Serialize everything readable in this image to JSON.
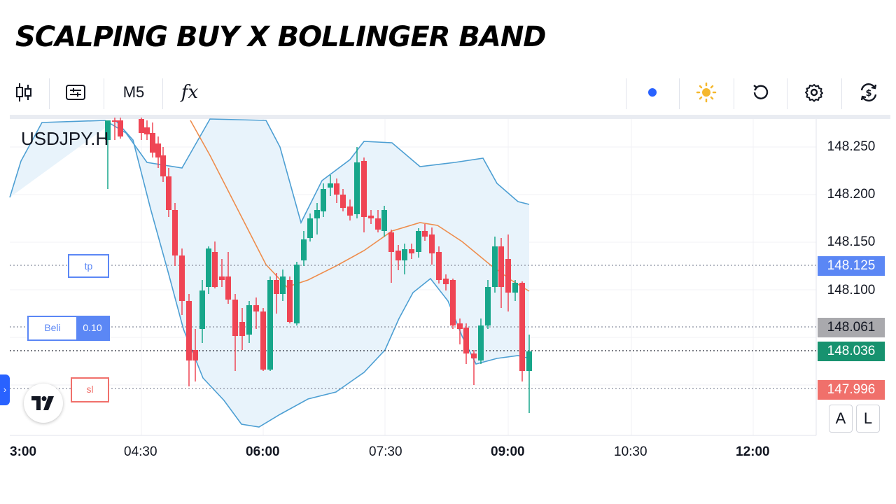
{
  "title": "SCALPING BUY X BOLLINGER BAND",
  "toolbar": {
    "timeframe": "M5",
    "indicators_label": "fx",
    "icons": [
      "candles-icon",
      "chart-type-icon",
      "indicators-icon",
      "status-dot-icon",
      "sun-icon",
      "undo-icon",
      "settings-icon",
      "currency-swap-icon"
    ]
  },
  "symbol": "USDJPY.H",
  "price_axis": {
    "ticks": [
      "148.250",
      "148.200",
      "148.150",
      "148.100"
    ],
    "tags": {
      "tp": "148.125",
      "pending": "148.061",
      "current": "148.036",
      "sl": "147.996"
    },
    "colors": {
      "tp": "#5b87f5",
      "pending": "#a9a9ad",
      "current": "#17926f",
      "sl": "#f0706b"
    }
  },
  "time_axis": [
    "3:00",
    "04:30",
    "06:00",
    "07:30",
    "09:00",
    "10:30",
    "12:00"
  ],
  "orders": {
    "tp_label": "tp",
    "buy_label": "Beli",
    "buy_volume": "0.10",
    "sl_label": "sl"
  },
  "scale_buttons": {
    "auto": "A",
    "log": "L"
  },
  "colors": {
    "up": "#17a68a",
    "down": "#ef4554",
    "band": "#4d9fd3",
    "basis": "#ee8d4d",
    "band_fill": "#e8f3fb"
  }
}
